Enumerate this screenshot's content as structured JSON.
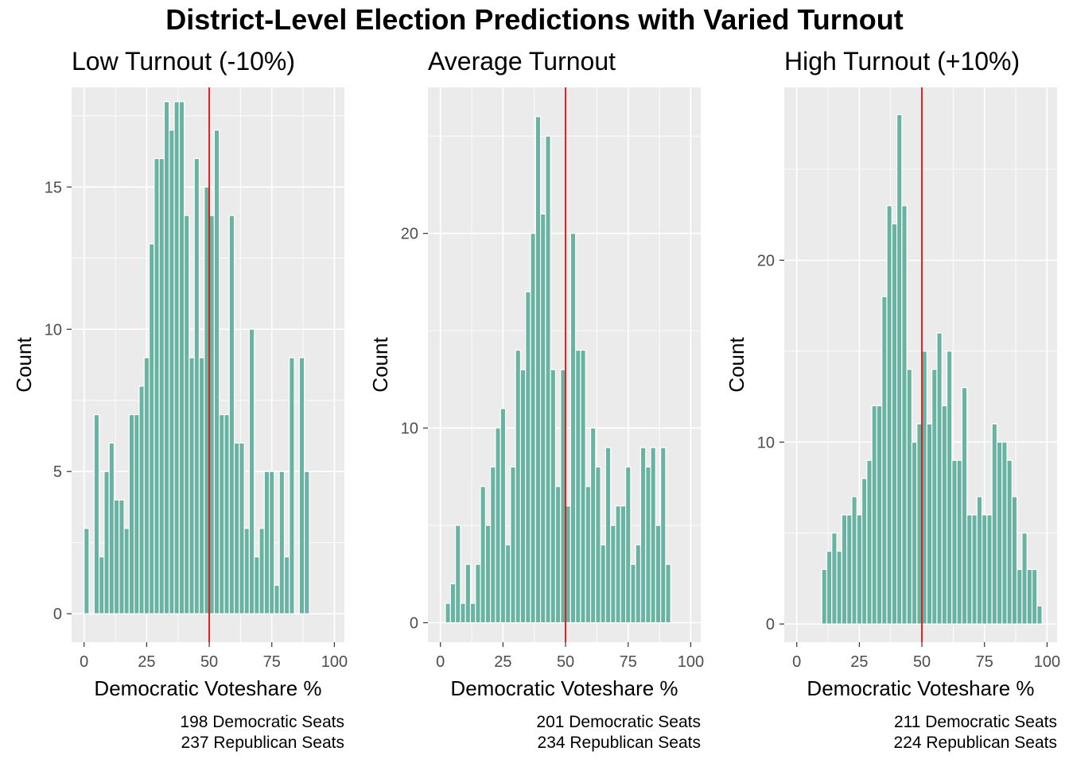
{
  "title": "District-Level Election Predictions with Varied Turnout",
  "colors": {
    "bar": "#69b3a2",
    "bar_outline": "#ffffff",
    "panel_bg": "#ebebeb",
    "grid": "#ffffff",
    "vline": "#e41a1c"
  },
  "chart_data": [
    {
      "type": "bar",
      "title": "Low Turnout (-10%)",
      "xlabel": "Democratic Voteshare %",
      "ylabel": "Count",
      "xlim": [
        -5,
        104
      ],
      "ylim": [
        -1,
        18.5
      ],
      "x_ticks": [
        0,
        25,
        50,
        75,
        100
      ],
      "y_ticks": [
        0,
        5,
        10,
        15
      ],
      "bin_width": 2,
      "bin_start": 1,
      "vline": 50,
      "grid": true,
      "counts": [
        3,
        0,
        7,
        2,
        5,
        6,
        4,
        4,
        3,
        7,
        7,
        8,
        9,
        13,
        16,
        16,
        18,
        17,
        18,
        18,
        14,
        9,
        16,
        9,
        15,
        14,
        17,
        7,
        7,
        14,
        6,
        6,
        3,
        10,
        2,
        3,
        5,
        5,
        1,
        5,
        2,
        9,
        0,
        9,
        5
      ],
      "caption": [
        "198 Democratic Seats",
        "237 Republican Seats"
      ]
    },
    {
      "type": "bar",
      "title": "Average Turnout",
      "xlabel": "Democratic Voteshare %",
      "ylabel": "Count",
      "xlim": [
        -5,
        104
      ],
      "ylim": [
        -1,
        27.5
      ],
      "x_ticks": [
        0,
        25,
        50,
        75,
        100
      ],
      "y_ticks": [
        0,
        10,
        20
      ],
      "bin_width": 2,
      "bin_start": 3,
      "vline": 50,
      "grid": true,
      "counts": [
        1,
        2,
        5,
        1,
        3,
        1,
        3,
        7,
        5,
        8,
        10,
        11,
        4,
        8,
        14,
        13,
        17,
        20,
        26,
        21,
        25,
        13,
        7,
        13,
        6,
        20,
        14,
        14,
        7,
        10,
        8,
        4,
        9,
        5,
        6,
        6,
        8,
        3,
        4,
        9,
        8,
        9,
        5,
        9,
        3
      ],
      "caption": [
        "201 Democratic Seats",
        "234 Republican Seats"
      ]
    },
    {
      "type": "bar",
      "title": "High Turnout (+10%)",
      "xlabel": "Democratic Voteshare %",
      "ylabel": "Count",
      "xlim": [
        -5,
        104
      ],
      "ylim": [
        -1,
        29.5
      ],
      "x_ticks": [
        0,
        25,
        50,
        75,
        100
      ],
      "y_ticks": [
        0,
        10,
        20
      ],
      "bin_width": 2,
      "bin_start": 11,
      "vline": 50,
      "grid": true,
      "counts": [
        3,
        4,
        5,
        4,
        6,
        6,
        7,
        6,
        8,
        9,
        12,
        12,
        18,
        23,
        22,
        28,
        23,
        14,
        10,
        11,
        15,
        11,
        14,
        16,
        12,
        15,
        9,
        9,
        13,
        6,
        6,
        7,
        6,
        6,
        11,
        10,
        10,
        9,
        7,
        3,
        5,
        3,
        3,
        1
      ],
      "caption": [
        "211 Democratic Seats",
        "224 Republican Seats"
      ]
    }
  ]
}
